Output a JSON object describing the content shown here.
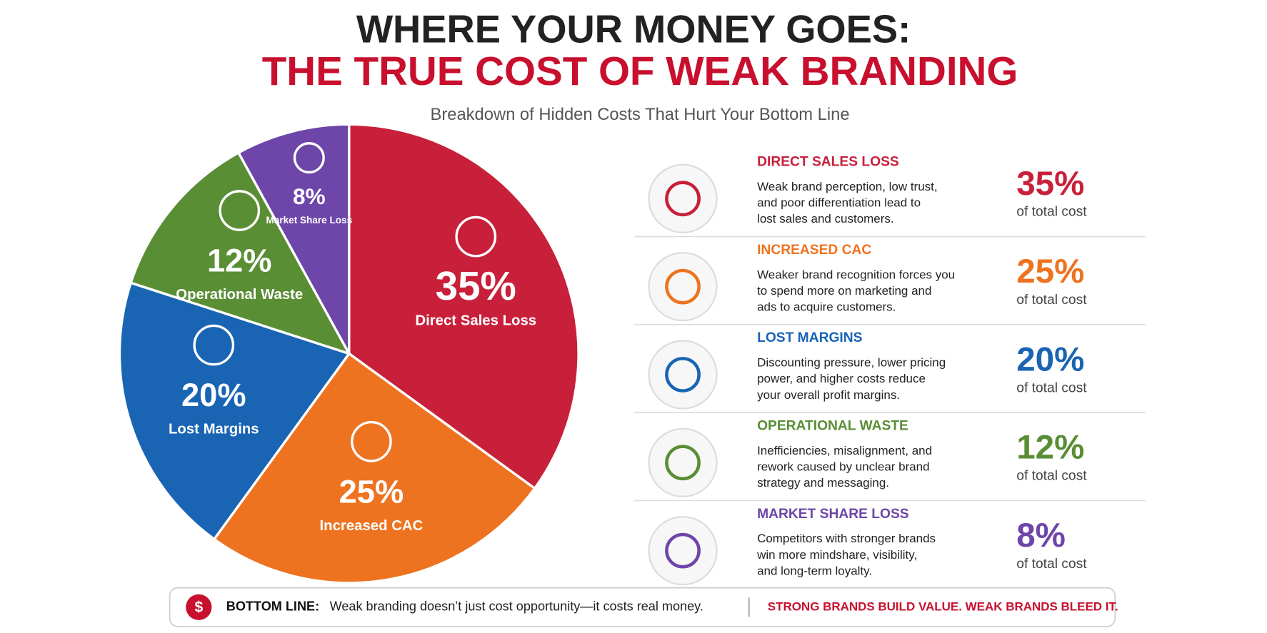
{
  "title_line1": "WHERE YOUR  MONEY GOES:",
  "title_line2": "THE TRUE COST OF  WEAK BRANDING",
  "subtitle": "Breakdown of Hidden Costs That Hurt Your Bottom Line",
  "chart_data": {
    "type": "pie",
    "categories": [
      "Direct Sales Loss",
      "Increased CAC",
      "Lost Margins",
      "Operational Waste",
      "Market Share Loss"
    ],
    "values": [
      35,
      25,
      20,
      12,
      8
    ],
    "value_labels": [
      "35%",
      "25%",
      "20%",
      "12%",
      "8%"
    ],
    "colors": [
      "#c8203a",
      "#ee7320",
      "#1a64b4",
      "#5a8e35",
      "#6e45a8"
    ]
  },
  "breakdown": {
    "items": [
      {
        "heading": "DIRECT SALES LOSS",
        "description": [
          "Weak brand perception, low trust,",
          "and poor differentiation lead to",
          "lost sales and customers."
        ],
        "note": "of total cost"
      },
      {
        "heading": "INCREASED CAC",
        "description": [
          "Weaker brand recognition forces you",
          "to spend more on marketing and",
          "ads to acquire customers."
        ],
        "note": "of total cost"
      },
      {
        "heading": "LOST MARGINS",
        "description": [
          "Discounting pressure, lower pricing",
          "power, and higher costs reduce",
          "your overall profit margins."
        ],
        "note": "of total cost"
      },
      {
        "heading": "OPERATIONAL WASTE",
        "description": [
          "Inefficiencies, misalignment, and",
          "rework caused by unclear brand",
          "strategy and messaging."
        ],
        "note": "of total cost"
      },
      {
        "heading": "MARKET SHARE LOSS",
        "description": [
          "Competitors with stronger brands",
          "win more mindshare, visibility,",
          "and long-term loyalty."
        ],
        "note": "of total cost"
      }
    ]
  },
  "bottom_line": {
    "icon": "$",
    "label": "BOTTOM LINE:",
    "text": "Weak branding doesn’t just cost opportunity—it costs real money.",
    "tagline": "STRONG BRANDS BUILD VALUE. WEAK BRANDS BLEED IT."
  }
}
